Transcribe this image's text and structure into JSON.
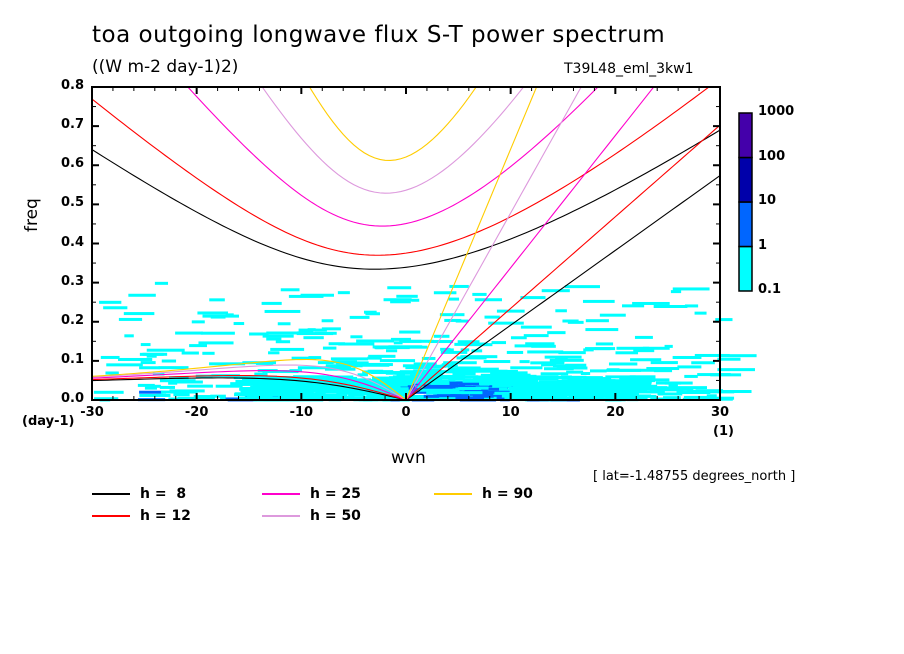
{
  "chart_data": {
    "type": "heatmap",
    "title": "toa outgoing longwave flux S-T power spectrum",
    "units_label": "((W m-2 day-1)2)",
    "run_id": "T39L48_eml_3kw1",
    "xlabel": "wvn",
    "ylabel": "freq",
    "x_unit": "(1)",
    "y_unit": "(day-1)",
    "xlim": [
      -30,
      30
    ],
    "ylim": [
      0.0,
      0.8
    ],
    "x_ticks": [
      "-30",
      "-20",
      "-10",
      "0",
      "10",
      "20",
      "30"
    ],
    "x_tick_values": [
      -30,
      -20,
      -10,
      0,
      10,
      20,
      30
    ],
    "y_ticks": [
      "0.0",
      "0.1",
      "0.2",
      "0.3",
      "0.4",
      "0.5",
      "0.6",
      "0.7",
      "0.8"
    ],
    "y_tick_values": [
      0.0,
      0.1,
      0.2,
      0.3,
      0.4,
      0.5,
      0.6,
      0.7,
      0.8
    ],
    "annotation": "[ lat=-1.48755 degrees_north ]",
    "colorbar": {
      "levels": [
        "0.1",
        "1",
        "10",
        "100",
        "1000"
      ],
      "colors": [
        "#00ffff",
        "#0066ff",
        "#0000aa",
        "#4400aa"
      ]
    },
    "dispersion_curves": [
      {
        "label": "h =  8",
        "equivalent_depth": 8,
        "color": "#000000"
      },
      {
        "label": "h = 12",
        "equivalent_depth": 12,
        "color": "#ff0000"
      },
      {
        "label": "h = 25",
        "equivalent_depth": 25,
        "color": "#ff00cc"
      },
      {
        "label": "h = 50",
        "equivalent_depth": 50,
        "color": "#dd99dd"
      },
      {
        "label": "h = 90",
        "equivalent_depth": 90,
        "color": "#ffcc00"
      }
    ],
    "spectrum_note": "Power mostly in 0.1-1 band (cyan) below freq 0.3; 1-10 band (blue) concentrated near wvn 0-8, freq < 0.05"
  }
}
